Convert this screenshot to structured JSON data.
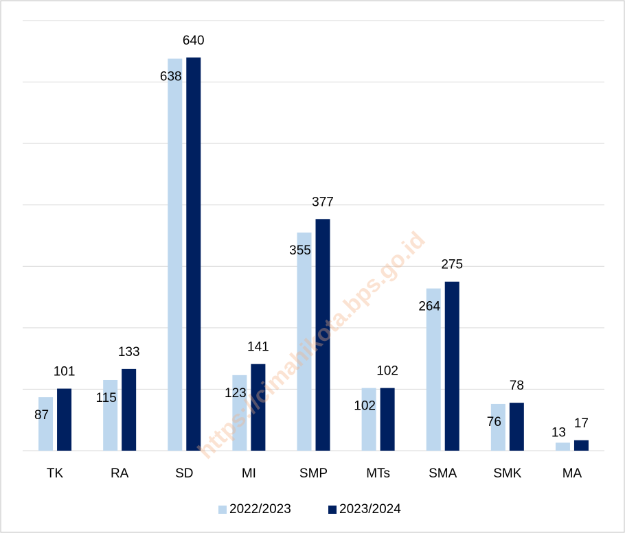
{
  "chart_data": {
    "type": "bar",
    "categories": [
      "TK",
      "RA",
      "SD",
      "MI",
      "SMP",
      "MTs",
      "SMA",
      "SMK",
      "MA"
    ],
    "series": [
      {
        "name": "2022/2023",
        "color": "#bdd7ee",
        "values": [
          87,
          115,
          638,
          123,
          355,
          102,
          264,
          76,
          13
        ]
      },
      {
        "name": "2023/2024",
        "color": "#002060",
        "values": [
          101,
          133,
          640,
          141,
          377,
          102,
          275,
          78,
          17
        ]
      }
    ],
    "ylim": [
      0,
      700
    ],
    "yticks": [
      0,
      100,
      200,
      300,
      400,
      500,
      600,
      700
    ],
    "grid": true,
    "legend": "bottom",
    "watermark": "https://cimahikota.bps.go.id"
  }
}
